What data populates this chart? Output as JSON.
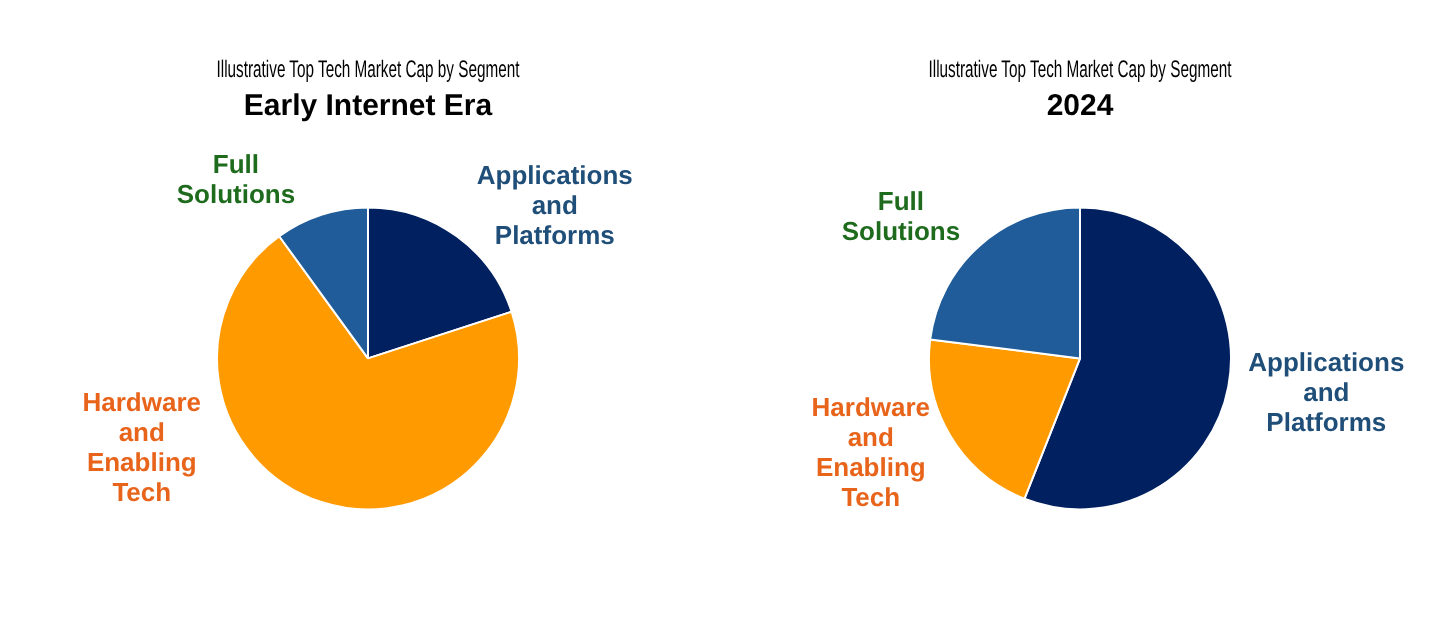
{
  "chart_data": [
    {
      "type": "pie",
      "title": "Illustrative Top Tech Market Cap by Segment",
      "subtitle": "Early Internet Era",
      "categories": [
        "Applications and Platforms",
        "Hardware and Enabling Tech",
        "Full Solutions"
      ],
      "values": [
        20,
        70,
        10
      ],
      "colors": [
        "#002060",
        "#ff9a00",
        "#1f5c99"
      ],
      "legend": false
    },
    {
      "type": "pie",
      "title": "Illustrative Top Tech Market Cap by Segment",
      "subtitle": "2024",
      "categories": [
        "Applications and Platforms",
        "Hardware and Enabling Tech",
        "Full Solutions"
      ],
      "values": [
        56,
        21,
        23
      ],
      "colors": [
        "#002060",
        "#ff9a00",
        "#1f5c99"
      ],
      "legend": false
    }
  ]
}
